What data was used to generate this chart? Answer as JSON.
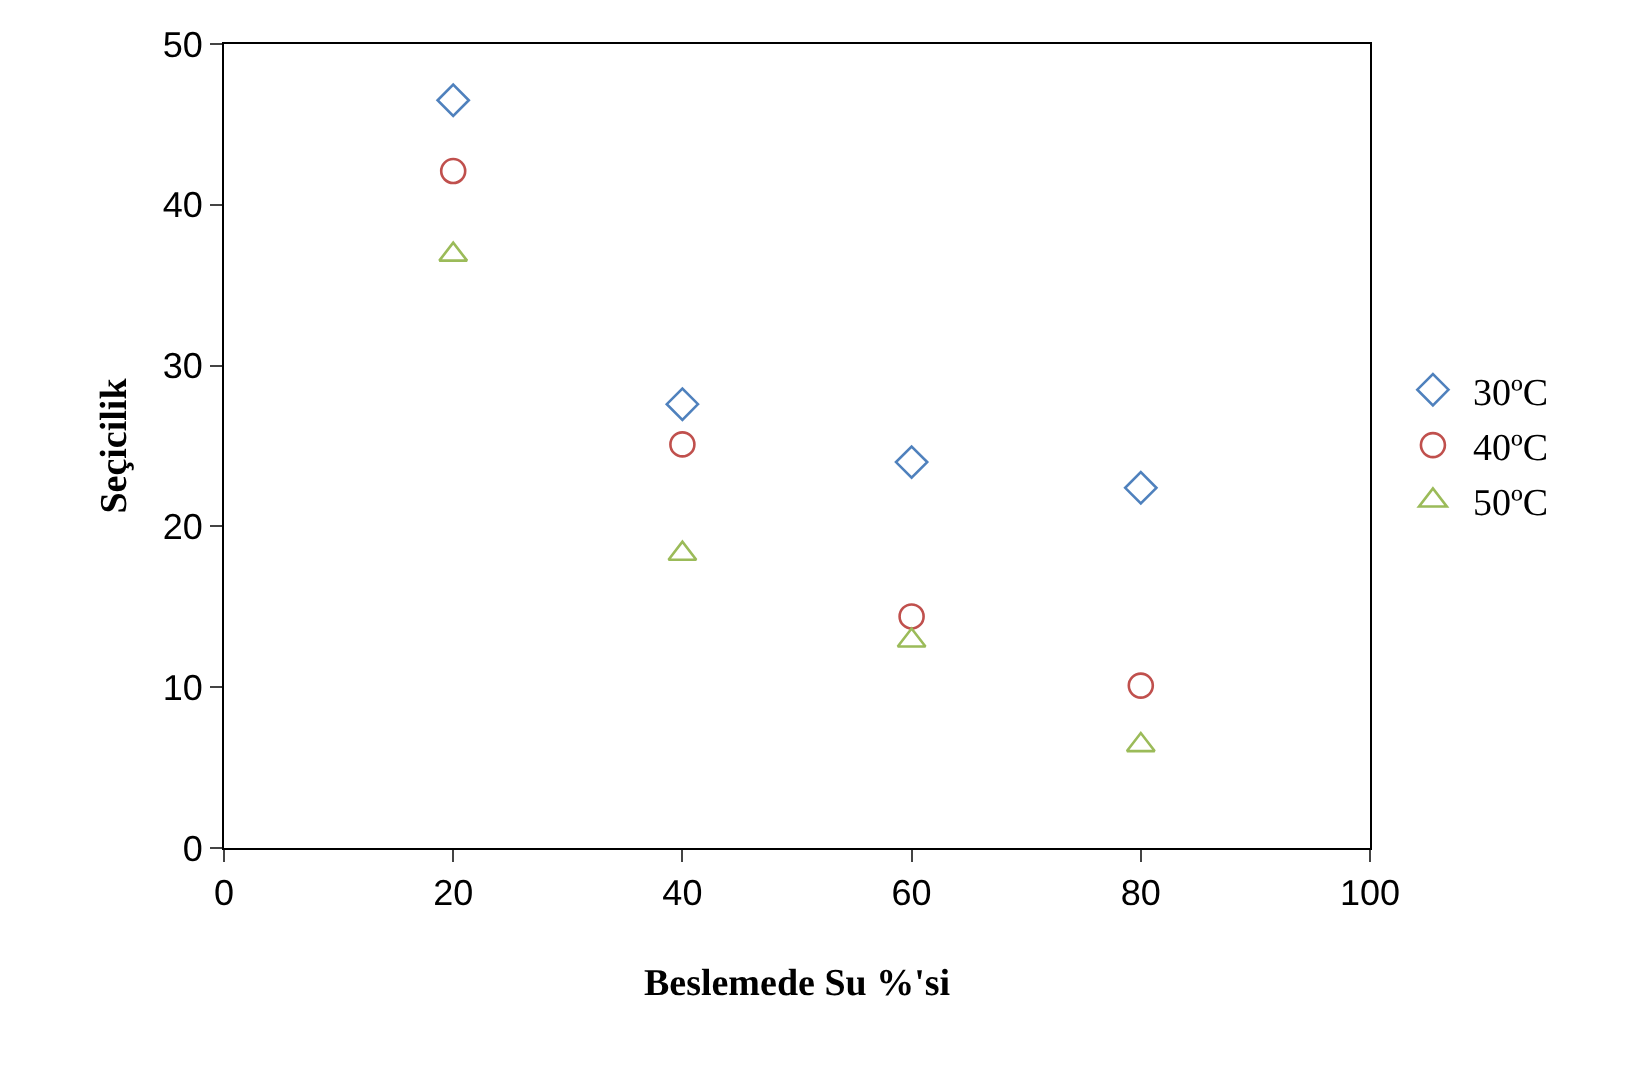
{
  "chart_data": {
    "type": "scatter",
    "xlabel": "Beslemede Su %'si",
    "ylabel": "Seçicilik",
    "x": [
      20,
      40,
      60,
      80
    ],
    "series": [
      {
        "name": "30ºC",
        "color": "#4f81bd",
        "marker": "diamond",
        "values": [
          46.5,
          27.6,
          24.0,
          22.4
        ]
      },
      {
        "name": "40ºC",
        "color": "#c0504d",
        "marker": "circle",
        "values": [
          42.1,
          25.1,
          14.4,
          10.1
        ]
      },
      {
        "name": "50ºC",
        "color": "#9bbb59",
        "marker": "triangle",
        "values": [
          36.9,
          18.3,
          12.9,
          6.4
        ]
      }
    ],
    "xlim": [
      0,
      100
    ],
    "xticks": [
      0,
      20,
      40,
      60,
      80,
      100
    ],
    "ylim": [
      0,
      50
    ],
    "yticks": [
      0,
      10,
      20,
      30,
      40,
      50
    ],
    "grid": false,
    "legend": "right"
  }
}
